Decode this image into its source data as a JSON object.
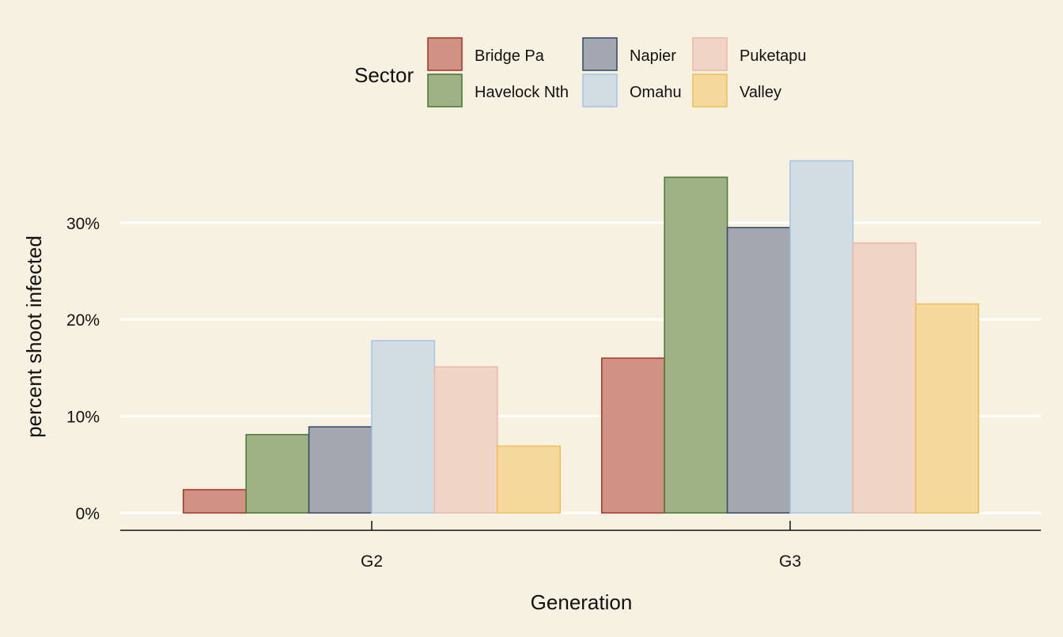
{
  "chart_data": {
    "type": "bar",
    "xlabel": "Generation",
    "ylabel": "percent shoot infected",
    "ylim": [
      0,
      0.4
    ],
    "yticks": [
      0,
      0.1,
      0.2,
      0.3
    ],
    "ytick_labels": [
      "0%",
      "10%",
      "20%",
      "30%"
    ],
    "grid": "horizontal major gridlines (white)",
    "legend": {
      "title": "Sector",
      "placement": "top",
      "rows": [
        [
          "Bridge Pa",
          "Napier",
          "Puketapu"
        ],
        [
          "Havelock Nth",
          "Omahu",
          "Valley"
        ]
      ]
    },
    "categories": [
      "G2",
      "G3"
    ],
    "series": [
      {
        "name": "Bridge Pa",
        "fill": "#d09282",
        "stroke": "#a83a2e",
        "values": [
          0.024,
          0.16
        ]
      },
      {
        "name": "Havelock Nth",
        "fill": "#9eb286",
        "stroke": "#4f7a37",
        "values": [
          0.081,
          0.347
        ]
      },
      {
        "name": "Napier",
        "fill": "#a3a7b0",
        "stroke": "#3e4d70",
        "values": [
          0.089,
          0.295
        ]
      },
      {
        "name": "Omahu",
        "fill": "#d1dde3",
        "stroke": "#a8c6e6",
        "values": [
          0.178,
          0.364
        ]
      },
      {
        "name": "Puketapu",
        "fill": "#f0d4c5",
        "stroke": "#ecb8a6",
        "values": [
          0.151,
          0.279
        ]
      },
      {
        "name": "Valley",
        "fill": "#f5d89c",
        "stroke": "#f1bf5a",
        "values": [
          0.069,
          0.216
        ]
      }
    ]
  }
}
